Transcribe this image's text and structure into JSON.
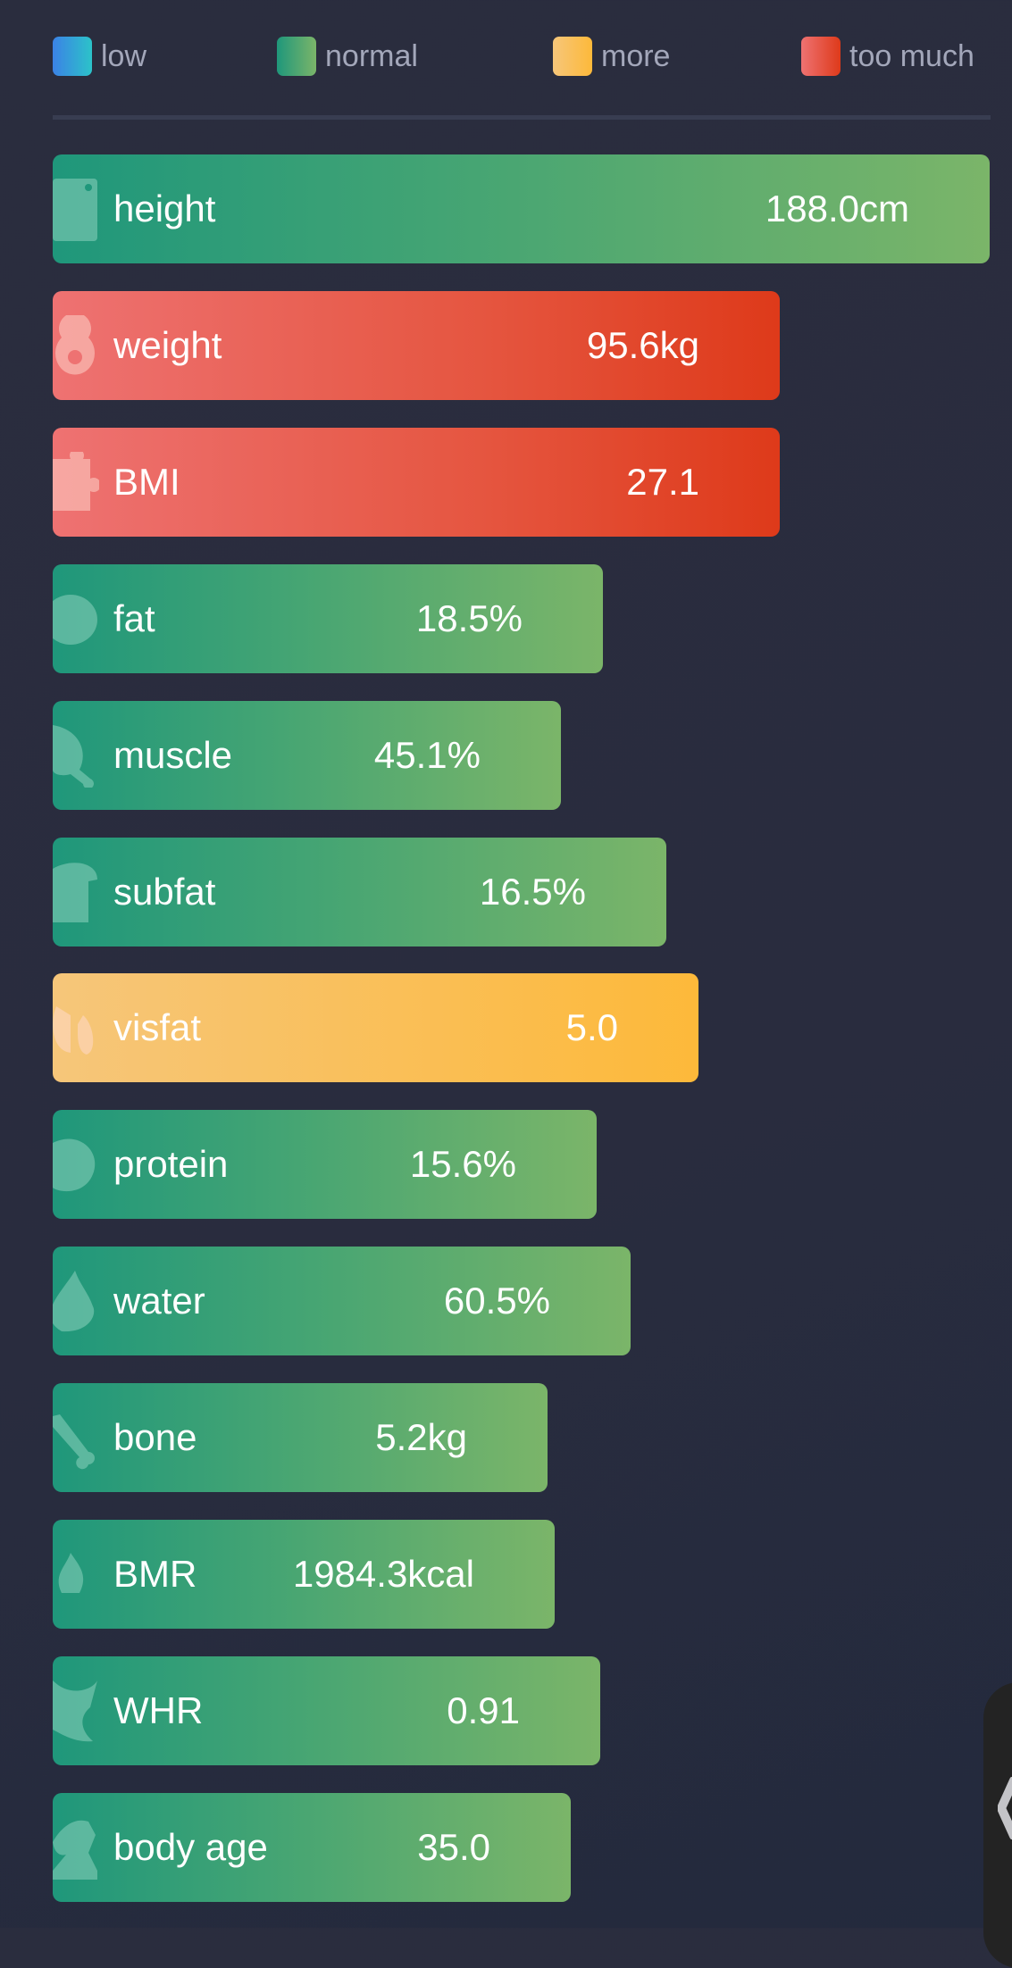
{
  "legend": [
    {
      "label": "low",
      "colors": [
        "#3b82e6",
        "#2cc3c9"
      ]
    },
    {
      "label": "normal",
      "colors": [
        "#1f977b",
        "#7bb569"
      ]
    },
    {
      "label": "more",
      "colors": [
        "#f6c67a",
        "#fdb93a"
      ]
    },
    {
      "label": "too much",
      "colors": [
        "#ee7272",
        "#de3a1a"
      ]
    }
  ],
  "metrics": [
    {
      "label": "height",
      "value": "188.0cm",
      "status": "normal",
      "icon": "ruler-icon",
      "fill": 1.0
    },
    {
      "label": "weight",
      "value": "95.6kg",
      "status": "too much",
      "icon": "kettlebell-icon",
      "fill": 0.776
    },
    {
      "label": "BMI",
      "value": "27.1",
      "status": "too much",
      "icon": "puzzle-icon",
      "fill": 0.776
    },
    {
      "label": "fat",
      "value": "18.5%",
      "status": "normal",
      "icon": "piggy-bank-icon",
      "fill": 0.587
    },
    {
      "label": "muscle",
      "value": "45.1%",
      "status": "normal",
      "icon": "drumstick-icon",
      "fill": 0.542
    },
    {
      "label": "subfat",
      "value": "16.5%",
      "status": "normal",
      "icon": "bread-icon",
      "fill": 0.655
    },
    {
      "label": "visfat",
      "value": "5.0",
      "status": "more",
      "icon": "lungs-icon",
      "fill": 0.689
    },
    {
      "label": "protein",
      "value": "15.6%",
      "status": "normal",
      "icon": "egg-icon",
      "fill": 0.581
    },
    {
      "label": "water",
      "value": "60.5%",
      "status": "normal",
      "icon": "water-drop-icon",
      "fill": 0.617
    },
    {
      "label": "bone",
      "value": "5.2kg",
      "status": "normal",
      "icon": "bone-icon",
      "fill": 0.528
    },
    {
      "label": "BMR",
      "value": "1984.3kcal",
      "status": "normal",
      "icon": "campfire-icon",
      "fill": 0.536
    },
    {
      "label": "WHR",
      "value": "0.91",
      "status": "normal",
      "icon": "waist-icon",
      "fill": 0.584
    },
    {
      "label": "body age",
      "value": "35.0",
      "status": "normal",
      "icon": "chess-knight-icon",
      "fill": 0.553
    }
  ]
}
